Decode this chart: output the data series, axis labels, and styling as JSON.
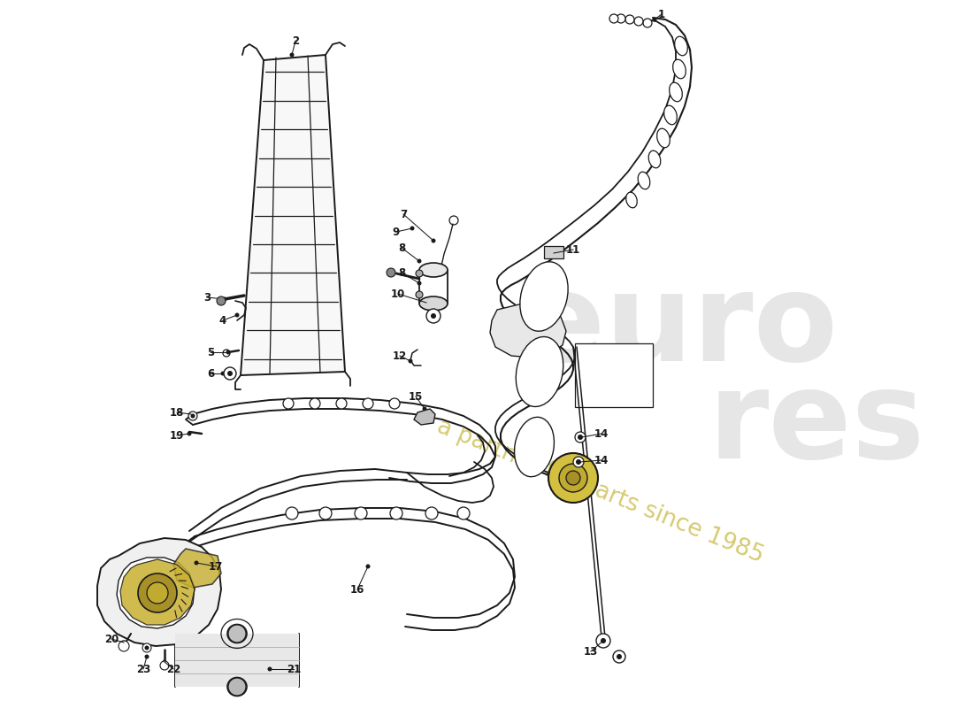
{
  "bg": "#ffffff",
  "lc": "#1a1a1a",
  "fig_w": 11.0,
  "fig_h": 8.0,
  "dpi": 100,
  "wm1_text": "euro",
  "wm2_text": "res",
  "wm3_text": "a partner for parts since 1985",
  "wm_gray": "#c8c8c8",
  "wm_gold": "#c8b840"
}
